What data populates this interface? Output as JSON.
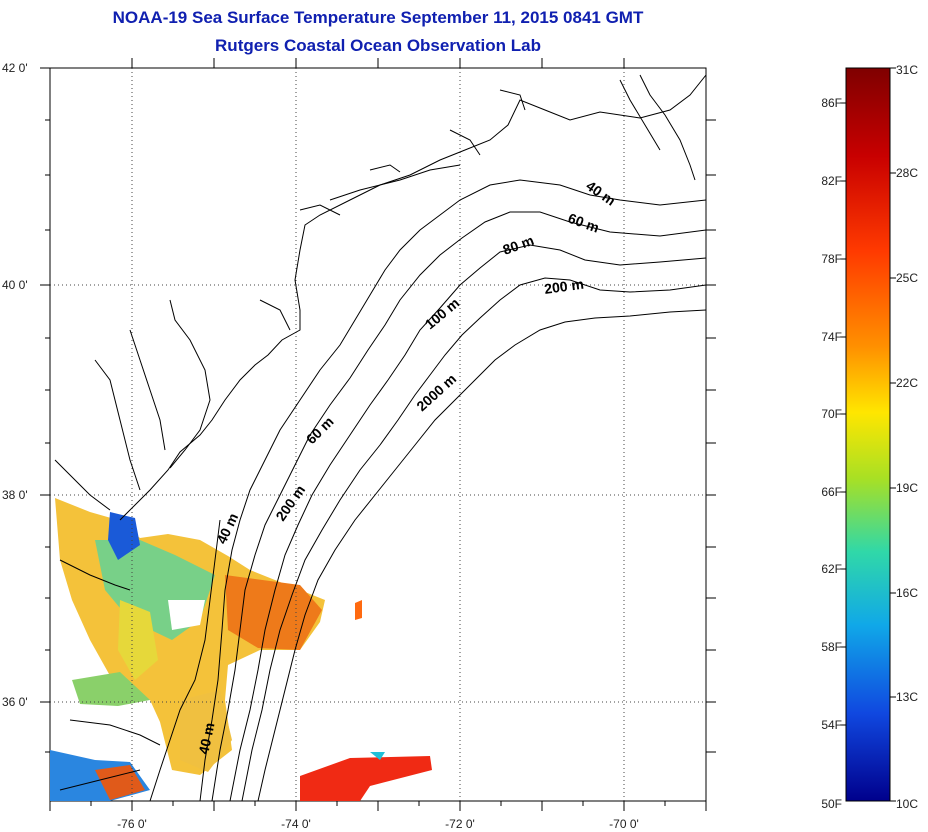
{
  "title_line1": "NOAA-19 Sea Surface Temperature September 11, 2015 0841 GMT",
  "title_line2": "Rutgers Coastal Ocean Observation Lab",
  "map": {
    "lon_range": [
      -77,
      -69
    ],
    "lat_range": [
      35,
      42
    ],
    "lat_ticks": [
      {
        "value": 42,
        "label": "42 0'"
      },
      {
        "value": 40,
        "label": "40 0'"
      },
      {
        "value": 38,
        "label": "38 0'"
      },
      {
        "value": 36,
        "label": "36 0'"
      }
    ],
    "lon_ticks": [
      {
        "value": -76,
        "label": "-76 0'"
      },
      {
        "value": -74,
        "label": "-74 0'"
      },
      {
        "value": -72,
        "label": "-72 0'"
      },
      {
        "value": -70,
        "label": "-70 0'"
      }
    ],
    "gridlines": "dotted",
    "contour_labels": [
      "40 m",
      "60 m",
      "80 m",
      "200 m",
      "100 m",
      "2000 m",
      "60 m",
      "200 m",
      "40 m",
      "40 m"
    ]
  },
  "colorbar": {
    "min_c": 10,
    "max_c": 31,
    "fahrenheit_labels": [
      "86F",
      "82F",
      "78F",
      "74F",
      "70F",
      "66F",
      "62F",
      "58F",
      "54F",
      "50F"
    ],
    "celsius_labels": [
      "31C",
      "28C",
      "25C",
      "22C",
      "19C",
      "16C",
      "13C",
      "10C"
    ],
    "colors": [
      "#7f0000",
      "#d40000",
      "#ff4400",
      "#ff9900",
      "#ffe000",
      "#a8e020",
      "#30d8a0",
      "#10a8e8",
      "#1050e0",
      "#0000a0"
    ]
  }
}
